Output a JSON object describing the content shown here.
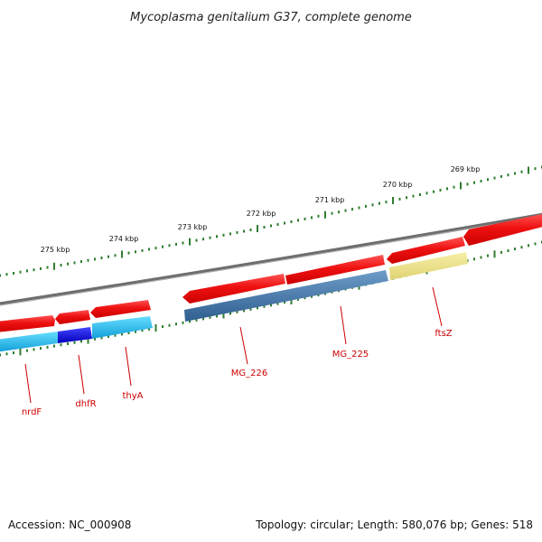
{
  "title": "Mycoplasma genitalium G37, complete genome",
  "accession_line": "Accession: NC_000908",
  "summary_line": "Topology: circular; Length: 580,076 bp; Genes: 518",
  "colors": {
    "backbone": "#7a7a7a",
    "tick": "#2f7d2f",
    "forward_feature": "#ee1111",
    "gene_label": "#cc0000",
    "cyan_feature": "#22bbee",
    "blue_feature": "#1111dd",
    "steel_feature": "#3f74a8",
    "yellow_feature": "#eee48c"
  },
  "kbp_labels": [
    "269 kbp",
    "270 kbp",
    "271 kbp",
    "272 kbp",
    "273 kbp",
    "274 kbp",
    "275 kbp"
  ],
  "gene_labels": [
    "ftsZ",
    "MG_225",
    "MG_226",
    "thyA",
    "dhfR",
    "nrdF"
  ]
}
